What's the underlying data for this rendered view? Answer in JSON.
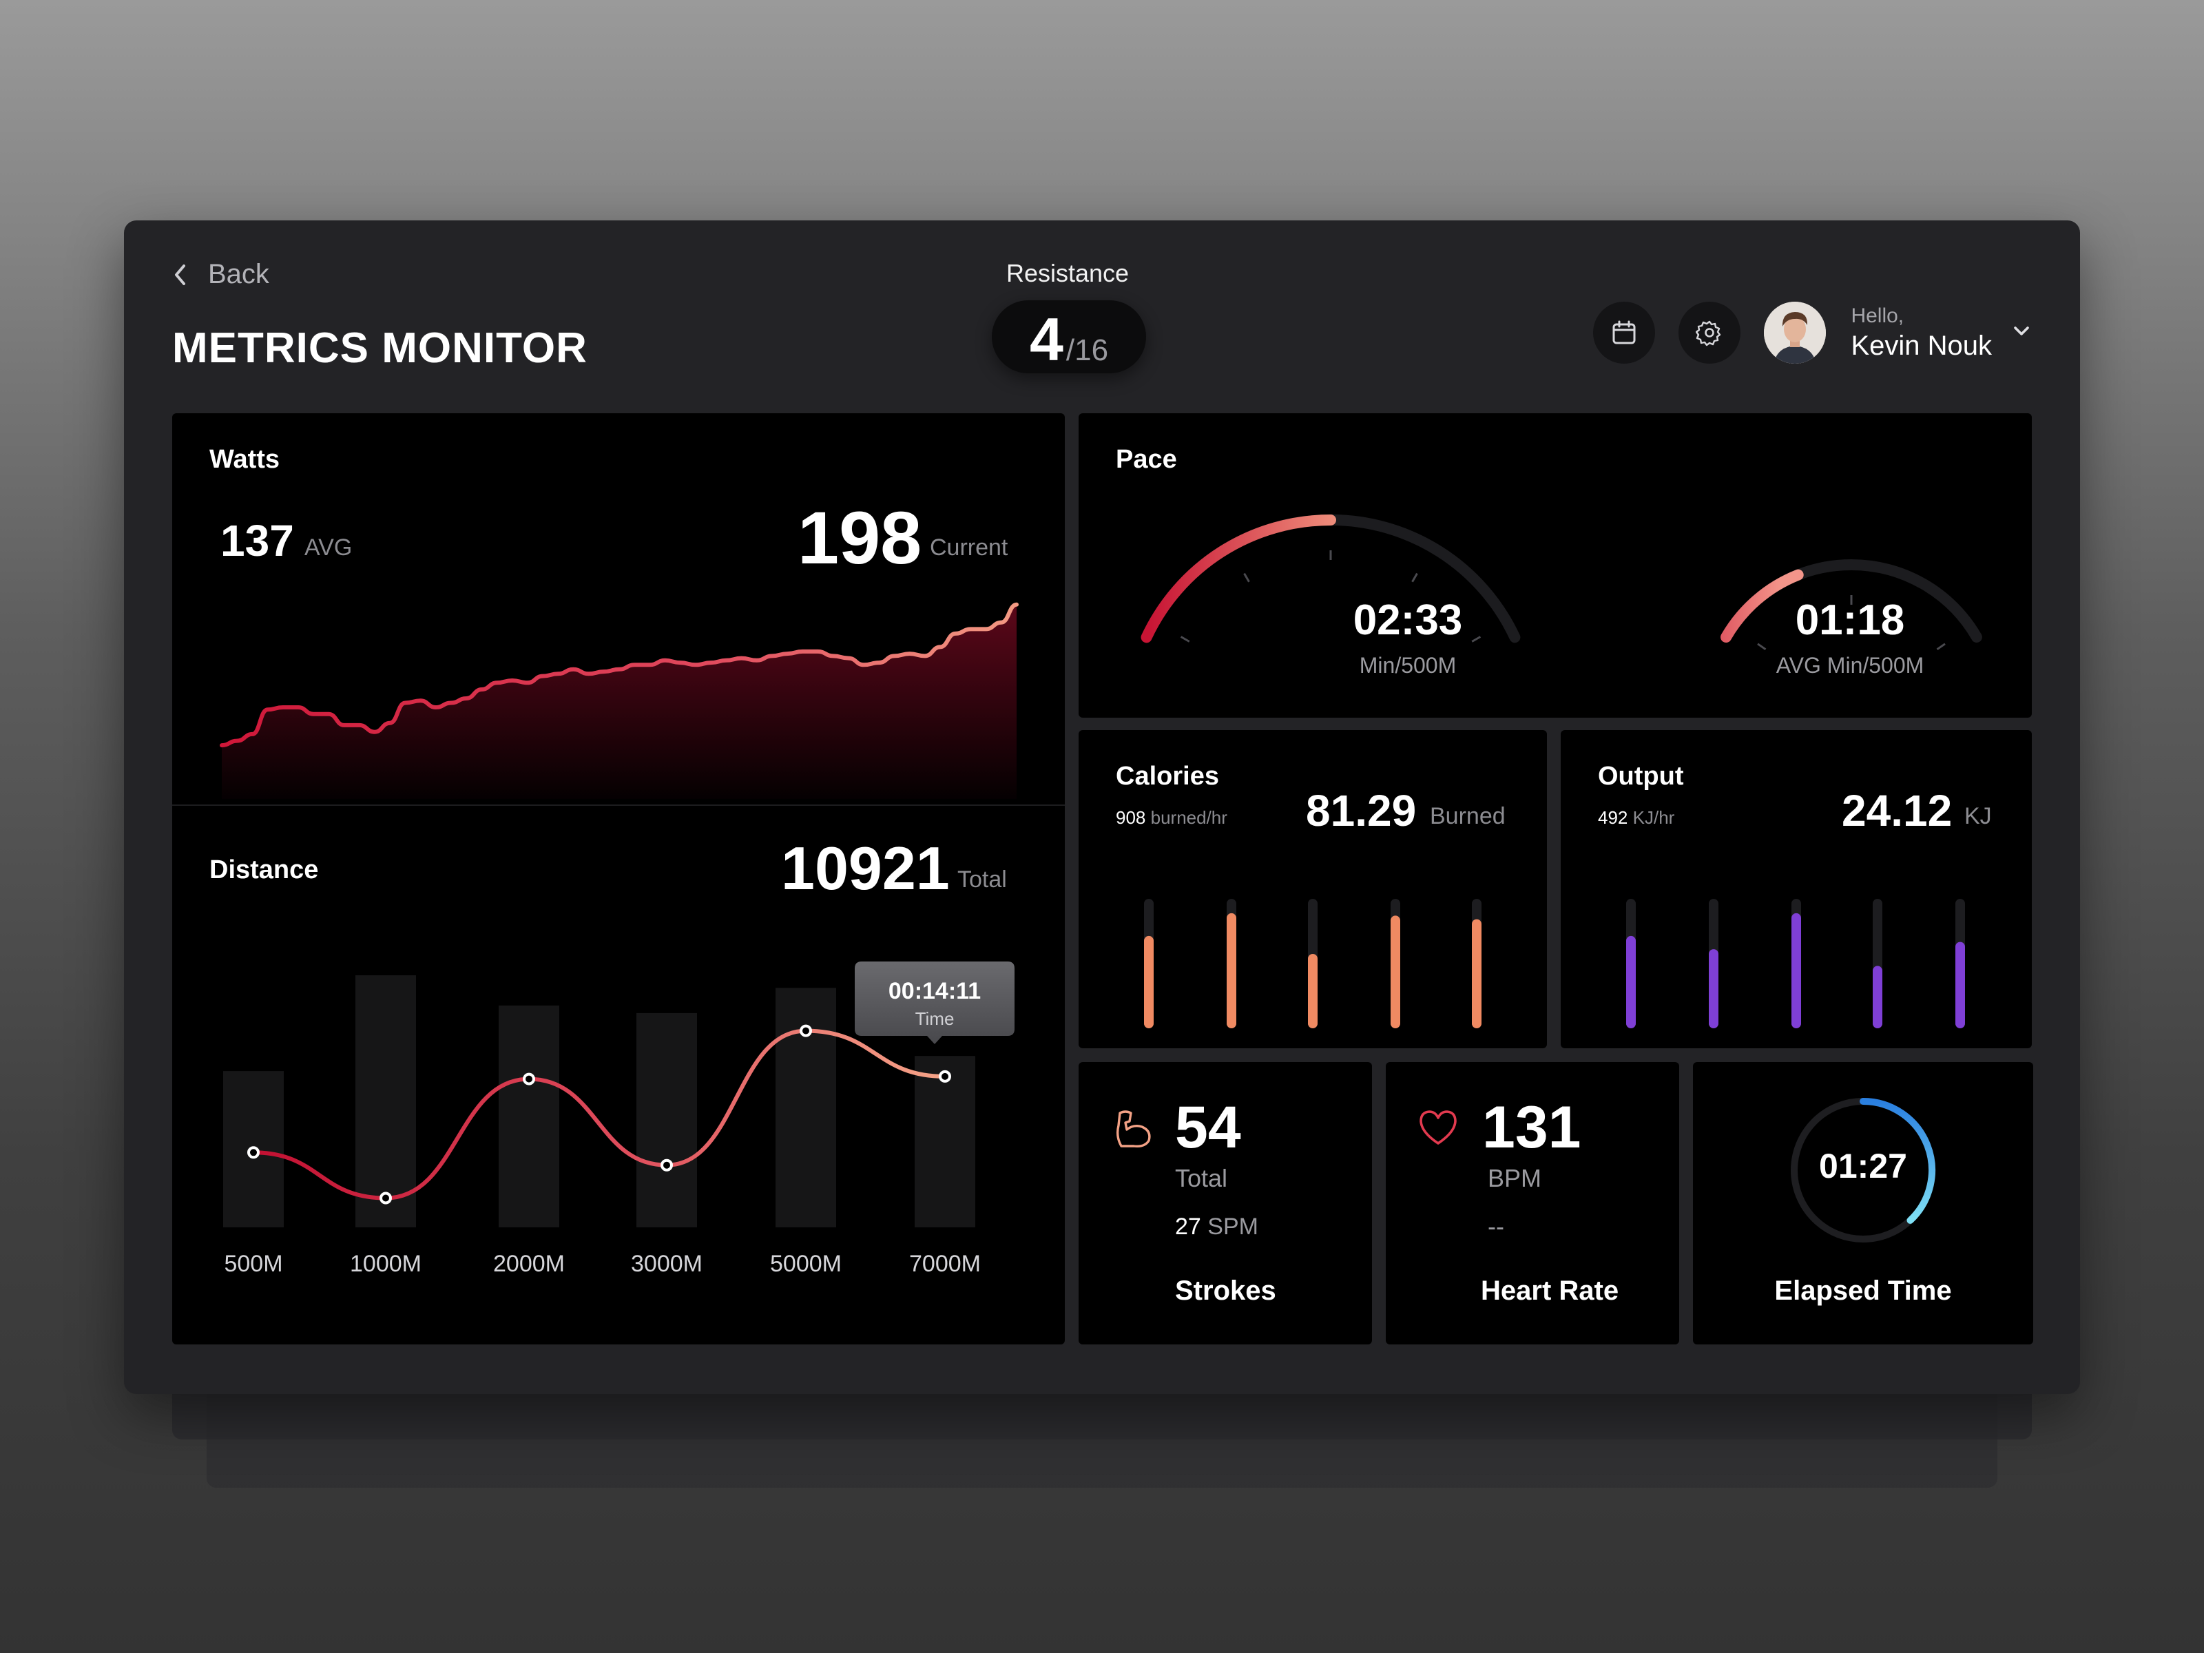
{
  "header": {
    "back_label": "Back",
    "title": "METRICS MONITOR",
    "resistance_label": "Resistance",
    "resistance_value": "4",
    "resistance_max": "/16",
    "hello": "Hello,",
    "username": "Kevin Nouk"
  },
  "watts": {
    "title": "Watts",
    "avg_value": "137",
    "avg_label": "AVG",
    "current_value": "198",
    "current_label": "Current",
    "series": [
      124,
      126,
      129,
      140,
      141,
      141,
      138,
      138,
      133,
      133,
      130,
      134,
      143,
      144,
      141,
      143,
      145,
      149,
      152,
      153,
      152,
      155,
      156,
      158,
      156,
      157,
      158,
      160,
      160,
      162,
      161,
      160,
      161,
      162,
      163,
      162,
      164,
      165,
      166,
      166,
      164,
      163,
      160,
      161,
      164,
      165,
      164,
      168,
      174,
      176,
      176,
      179,
      187
    ]
  },
  "distance": {
    "title": "Distance",
    "total_value": "10921",
    "total_label": "Total",
    "tooltip_value": "00:14:11",
    "tooltip_label": "Time",
    "chart_data": {
      "type": "bar",
      "categories": [
        "500M",
        "1000M",
        "2000M",
        "3000M",
        "5000M",
        "7000M"
      ],
      "bars": [
        0.62,
        1.0,
        0.88,
        0.85,
        0.95,
        0.68
      ],
      "line": [
        0.29,
        0.11,
        0.58,
        0.24,
        0.77,
        0.59
      ]
    }
  },
  "pace": {
    "title": "Pace",
    "gauge1_value": "02:33",
    "gauge1_label": "Min/500M",
    "gauge1_fill": 0.5,
    "gauge2_value": "01:18",
    "gauge2_label": "AVG Min/500M",
    "gauge2_fill": 0.32
  },
  "calories": {
    "title": "Calories",
    "rate_value": "908",
    "rate_unit": "burned/hr",
    "value": "81.29",
    "unit": "Burned",
    "bars": [
      0.69,
      0.88,
      0.54,
      0.86,
      0.83
    ],
    "color": "#f08a62"
  },
  "output": {
    "title": "Output",
    "rate_value": "492",
    "rate_unit": "KJ/hr",
    "value": "24.12",
    "unit": "KJ",
    "bars": [
      0.69,
      0.58,
      0.88,
      0.44,
      0.64
    ],
    "color": "#7f3fd6"
  },
  "strokes": {
    "value": "54",
    "unit": "Total",
    "spm_value": "27",
    "spm_unit": "SPM",
    "label": "Strokes"
  },
  "heart": {
    "value": "131",
    "unit": "BPM",
    "sub": "--",
    "label": "Heart Rate"
  },
  "elapsed": {
    "value": "01:27",
    "label": "Elapsed Time",
    "progress": 0.38
  }
}
